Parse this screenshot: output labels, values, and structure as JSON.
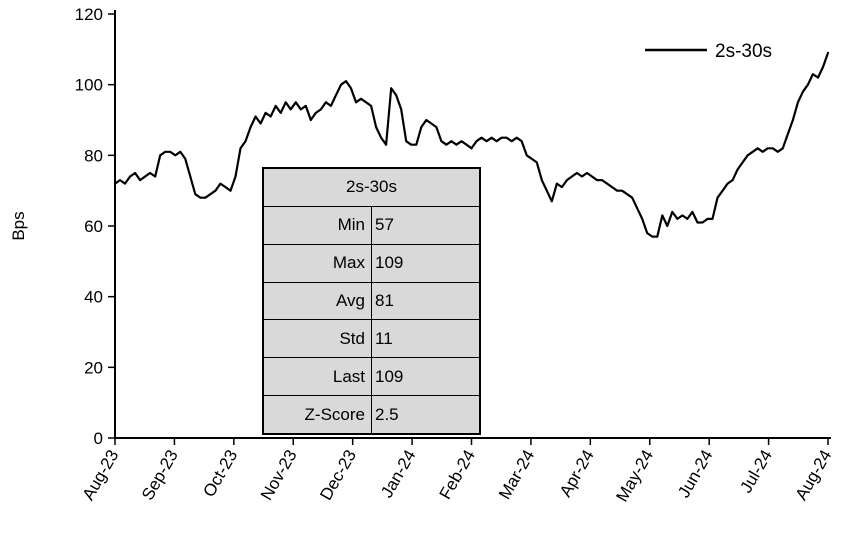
{
  "chart_data": {
    "type": "line",
    "title": "",
    "xlabel": "",
    "ylabel": "Bps",
    "ylim": [
      0,
      120
    ],
    "yticks": [
      0,
      20,
      40,
      60,
      80,
      100,
      120
    ],
    "x_tick_labels": [
      "Aug-23",
      "Sep-23",
      "Oct-23",
      "Nov-23",
      "Dec-23",
      "Jan-24",
      "Feb-24",
      "Mar-24",
      "Apr-24",
      "May-24",
      "Jun-24",
      "Jul-24",
      "Aug-24"
    ],
    "grid": false,
    "legend_position": "top-right",
    "series": [
      {
        "name": "2s-30s",
        "color": "#000000",
        "values": [
          72,
          73,
          72,
          74,
          75,
          73,
          74,
          75,
          74,
          80,
          81,
          81,
          80,
          81,
          79,
          74,
          69,
          68,
          68,
          69,
          70,
          72,
          71,
          70,
          74,
          82,
          84,
          88,
          91,
          89,
          92,
          91,
          94,
          92,
          95,
          93,
          95,
          93,
          94,
          90,
          92,
          93,
          95,
          94,
          97,
          100,
          101,
          99,
          95,
          96,
          95,
          94,
          88,
          85,
          83,
          99,
          97,
          93,
          84,
          83,
          83,
          88,
          90,
          89,
          88,
          84,
          83,
          84,
          83,
          84,
          83,
          82,
          84,
          85,
          84,
          85,
          84,
          85,
          85,
          84,
          85,
          84,
          80,
          79,
          78,
          73,
          70,
          67,
          72,
          71,
          73,
          74,
          75,
          74,
          75,
          74,
          73,
          73,
          72,
          71,
          70,
          70,
          69,
          68,
          65,
          62,
          58,
          57,
          57,
          63,
          60,
          64,
          62,
          63,
          62,
          64,
          61,
          61,
          62,
          62,
          68,
          70,
          72,
          73,
          76,
          78,
          80,
          81,
          82,
          81,
          82,
          82,
          81,
          82,
          86,
          90,
          95,
          98,
          100,
          103,
          102,
          105,
          109
        ]
      }
    ]
  },
  "legend": {
    "label": "2s-30s"
  },
  "stats_table": {
    "header": "2s-30s",
    "rows": [
      {
        "label": "Min",
        "value": "57"
      },
      {
        "label": "Max",
        "value": "109"
      },
      {
        "label": "Avg",
        "value": "81"
      },
      {
        "label": "Std",
        "value": "11"
      },
      {
        "label": "Last",
        "value": "109"
      },
      {
        "label": "Z-Score",
        "value": "2.5"
      }
    ],
    "bg_color": "#d9d9d9",
    "border_color": "#000000"
  }
}
